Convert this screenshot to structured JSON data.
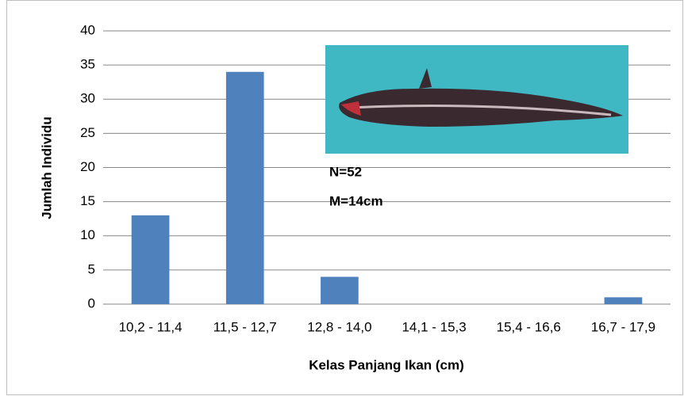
{
  "chart_data": {
    "type": "bar",
    "x_label": "Kelas Panjang Ikan (cm)",
    "y_label": "Jumlah Individu",
    "categories": [
      "10,2 - 11,4",
      "11,5 - 12,7",
      "12,8 - 14,0",
      "14,1 - 15,3",
      "15,4 - 16,6",
      "16,7 - 17,9"
    ],
    "values": [
      13,
      34,
      4,
      0,
      0,
      1
    ],
    "color": "#4f81bd",
    "ylim": [
      0,
      40
    ],
    "yticks": [
      0,
      5,
      10,
      15,
      20,
      25,
      30,
      35,
      40
    ],
    "grid": true,
    "annotations": [
      "N=52",
      "M=14cm"
    ]
  }
}
